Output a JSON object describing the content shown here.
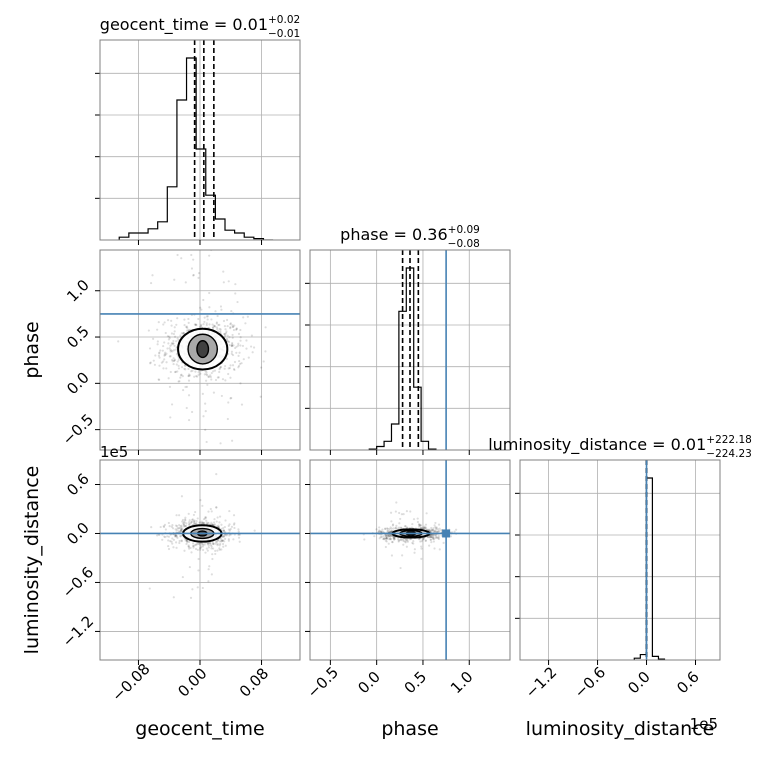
{
  "chart_data": {
    "type": "corner",
    "colors": {
      "truth": "#4682b4",
      "hist": "#000000",
      "grid": "#b0b0b0",
      "scatter": "#000000"
    },
    "grid": true,
    "parameters": [
      {
        "name": "geocent_time",
        "xlabel": "geocent_time",
        "ylabel": "",
        "title": {
          "text": "geocent_time = 0.01",
          "plus": "+0.02",
          "minus": "−0.01"
        },
        "range": [
          -0.13,
          0.13
        ],
        "ticks": [
          -0.08,
          0.0,
          0.08
        ],
        "tick_labels": [
          "−0.08",
          "0.00",
          "0.08"
        ],
        "offset_text": "",
        "median": 0.005,
        "quantiles": [
          -0.007,
          0.005,
          0.018
        ],
        "truth": null,
        "hist": {
          "edges": [
            -0.105,
            -0.0925,
            -0.08,
            -0.0675,
            -0.055,
            -0.0425,
            -0.03,
            -0.0175,
            -0.005,
            0.0075,
            0.02,
            0.0325,
            0.045,
            0.0575,
            0.07,
            0.0825,
            0.095
          ],
          "counts": [
            0.02,
            0.05,
            0.05,
            0.08,
            0.13,
            0.38,
            1.0,
            1.3,
            0.65,
            0.32,
            0.15,
            0.07,
            0.05,
            0.02,
            0.01,
            0.0
          ]
        }
      },
      {
        "name": "phase",
        "xlabel": "phase",
        "ylabel": "phase",
        "title": {
          "text": "phase = 0.36",
          "plus": "+0.09",
          "minus": "−0.08"
        },
        "range": [
          -0.72,
          1.44
        ],
        "ticks": [
          -0.5,
          0.0,
          0.5,
          1.0
        ],
        "tick_labels": [
          "−0.5",
          "0.0",
          "0.5",
          "1.0"
        ],
        "offset_text": "",
        "median": 0.36,
        "quantiles": [
          0.28,
          0.36,
          0.45
        ],
        "truth": 0.75,
        "hist": {
          "edges": [
            -0.08,
            0.0,
            0.08,
            0.16,
            0.24,
            0.32,
            0.4,
            0.48,
            0.56,
            0.64
          ],
          "counts": [
            0.02,
            0.08,
            0.2,
            0.6,
            3.2,
            4.2,
            1.45,
            0.2,
            0.02
          ]
        }
      },
      {
        "name": "luminosity_distance",
        "xlabel": "luminosity_distance",
        "ylabel": "luminosity_distance",
        "title": {
          "text": "luminosity_distance = 0.01",
          "plus": "+222.18",
          "minus": "−224.23"
        },
        "range": [
          -155000,
          90000
        ],
        "ticks": [
          -120000,
          -60000,
          0,
          60000
        ],
        "tick_labels": [
          "−1.2",
          "−0.6",
          "0.0",
          "0.6"
        ],
        "offset_text": "1e5",
        "median": 0.01,
        "quantiles": [
          -224.23,
          0.01,
          222.2
        ],
        "truth": 0,
        "hist": {
          "edges": [
            -15000,
            -7600,
            -200,
            7200,
            14600,
            22000
          ],
          "counts": [
            0.01,
            0.03,
            1.0,
            0.02,
            0.005
          ]
        }
      }
    ],
    "contours_2d": [
      {
        "x": "geocent_time",
        "y": "phase",
        "center": [
          0.0035,
          0.37
        ],
        "levels": [
          {
            "rx": 0.0075,
            "ry": 0.09,
            "fill": "#2e2e2e"
          },
          {
            "rx": 0.019,
            "ry": 0.16,
            "fill": "#9a9a9a"
          },
          {
            "rx": 0.032,
            "ry": 0.22,
            "fill": "#ffffff"
          }
        ]
      },
      {
        "x": "geocent_time",
        "y": "luminosity_distance",
        "center": [
          0.003,
          0
        ],
        "levels": [
          {
            "rx": 0.006,
            "ry": 3000,
            "fill": "#2e2e2e"
          },
          {
            "rx": 0.015,
            "ry": 6000,
            "fill": "#9a9a9a"
          },
          {
            "rx": 0.025,
            "ry": 10000,
            "fill": "#ffffff"
          }
        ]
      },
      {
        "x": "phase",
        "y": "luminosity_distance",
        "center": [
          0.37,
          0
        ],
        "levels": [
          {
            "rx": 0.05,
            "ry": 1500,
            "fill": "#2e2e2e"
          },
          {
            "rx": 0.12,
            "ry": 3500,
            "fill": "#9a9a9a"
          },
          {
            "rx": 0.2,
            "ry": 5000,
            "fill": "#ffffff"
          }
        ]
      }
    ]
  }
}
